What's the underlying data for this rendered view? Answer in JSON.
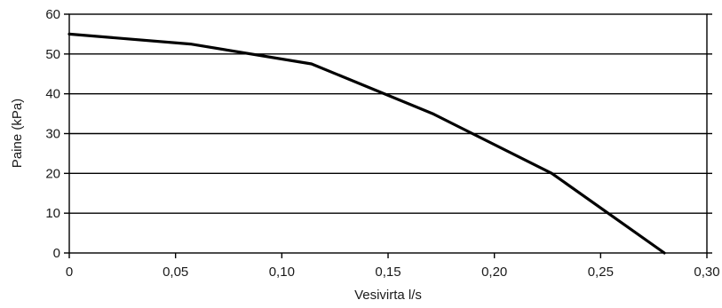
{
  "chart_data": {
    "type": "line",
    "title": "",
    "xlabel": "Vesivirta l/s",
    "ylabel": "Paine (kPa)",
    "xlim": [
      0,
      0.3
    ],
    "ylim": [
      0,
      60
    ],
    "x_ticks": [
      0,
      0.05,
      0.1,
      0.15,
      0.2,
      0.25,
      0.3
    ],
    "x_tick_labels": [
      "0",
      "0,05",
      "0,10",
      "0,15",
      "0,20",
      "0,25",
      "0,30"
    ],
    "y_ticks": [
      0,
      10,
      20,
      30,
      40,
      50,
      60
    ],
    "y_tick_labels": [
      "0",
      "10",
      "20",
      "30",
      "40",
      "50",
      "60"
    ],
    "grid": "horizontal",
    "series": [
      {
        "x": [
          0,
          0.057,
          0.114,
          0.171,
          0.227,
          0.28
        ],
        "y": [
          55,
          52.5,
          47.5,
          35,
          20,
          0
        ],
        "color": "#000000"
      }
    ]
  }
}
